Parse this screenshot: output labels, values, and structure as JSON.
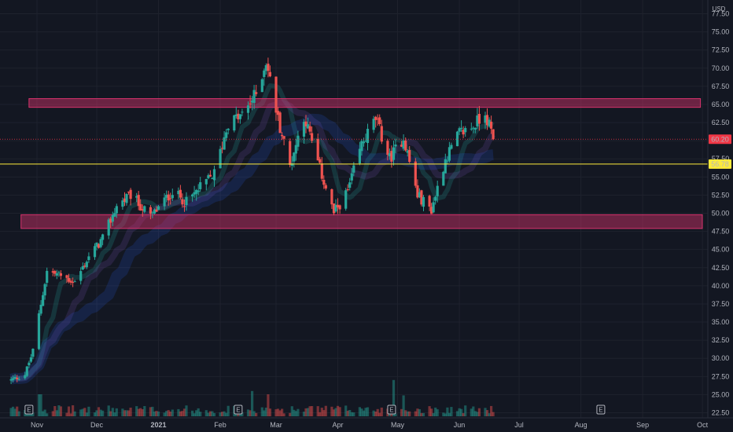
{
  "chart_data": {
    "type": "candlestick",
    "currency_label": "USD",
    "y_axis": {
      "range": [
        22.5,
        77.5
      ],
      "ticks": [
        "77.50",
        "75.00",
        "72.50",
        "70.00",
        "67.50",
        "65.00",
        "62.50",
        "60.00",
        "57.50",
        "55.00",
        "52.50",
        "50.00",
        "47.50",
        "45.00",
        "42.50",
        "40.00",
        "37.50",
        "35.00",
        "32.50",
        "30.00",
        "27.50",
        "25.00",
        "22.50"
      ]
    },
    "x_axis": {
      "labels": [
        {
          "label": "Nov",
          "date": "2020-11-01",
          "bold": false
        },
        {
          "label": "Dec",
          "date": "2020-12-01",
          "bold": false
        },
        {
          "label": "2021",
          "date": "2021-01-01",
          "bold": true
        },
        {
          "label": "Feb",
          "date": "2021-02-01",
          "bold": false
        },
        {
          "label": "Mar",
          "date": "2021-03-01",
          "bold": false
        },
        {
          "label": "Apr",
          "date": "2021-04-01",
          "bold": false
        },
        {
          "label": "May",
          "date": "2021-05-01",
          "bold": false
        },
        {
          "label": "Jun",
          "date": "2021-06-01",
          "bold": false
        },
        {
          "label": "Jul",
          "date": "2021-07-01",
          "bold": false
        },
        {
          "label": "Aug",
          "date": "2021-08-01",
          "bold": false
        },
        {
          "label": "Sep",
          "date": "2021-09-01",
          "bold": false
        },
        {
          "label": "Oct",
          "date": "2021-10-01",
          "bold": false
        }
      ]
    },
    "price_labels": [
      {
        "value": 60.2,
        "text": "60.20",
        "color": "#f23645",
        "text_color": "#ffffff"
      },
      {
        "value": 56.78,
        "text": "56.78",
        "color": "#ffeb3b",
        "text_color": "#131722"
      }
    ],
    "horizontal_lines": [
      {
        "value": 60.2,
        "color": "#f23645",
        "style": "dotted"
      },
      {
        "value": 56.78,
        "color": "#ffeb3b",
        "style": "solid"
      }
    ],
    "zones": [
      {
        "from": "2020-10-28",
        "to": "2021-09-30",
        "low": 64.6,
        "high": 65.8,
        "color": "#d6336c"
      },
      {
        "from": "2020-10-24",
        "to": "2021-10-15",
        "low": 47.9,
        "high": 49.8,
        "color": "#d6336c"
      }
    ],
    "events": [
      {
        "date": "2020-10-28",
        "label": "E"
      },
      {
        "date": "2021-02-10",
        "label": "E"
      },
      {
        "date": "2021-04-28",
        "label": "E"
      },
      {
        "date": "2021-08-11",
        "label": "E"
      }
    ],
    "ohlc_waypoints": [
      {
        "date": "2020-10-19",
        "close": 27.0
      },
      {
        "date": "2020-10-26",
        "close": 27.8
      },
      {
        "date": "2020-10-30",
        "close": 31.0
      },
      {
        "date": "2020-11-02",
        "close": 36.0
      },
      {
        "date": "2020-11-06",
        "close": 42.0
      },
      {
        "date": "2020-11-12",
        "close": 41.5
      },
      {
        "date": "2020-11-20",
        "close": 40.5
      },
      {
        "date": "2020-11-27",
        "close": 44.0
      },
      {
        "date": "2020-12-04",
        "close": 46.5
      },
      {
        "date": "2020-12-11",
        "close": 51.0
      },
      {
        "date": "2020-12-18",
        "close": 52.5
      },
      {
        "date": "2020-12-28",
        "close": 49.5
      },
      {
        "date": "2021-01-08",
        "close": 53.0
      },
      {
        "date": "2021-01-15",
        "close": 51.5
      },
      {
        "date": "2021-01-22",
        "close": 53.5
      },
      {
        "date": "2021-01-29",
        "close": 55.5
      },
      {
        "date": "2021-02-05",
        "close": 62.5
      },
      {
        "date": "2021-02-12",
        "close": 63.5
      },
      {
        "date": "2021-02-19",
        "close": 66.5
      },
      {
        "date": "2021-02-24",
        "close": 71.0
      },
      {
        "date": "2021-03-02",
        "close": 63.0
      },
      {
        "date": "2021-03-08",
        "close": 56.5
      },
      {
        "date": "2021-03-15",
        "close": 63.5
      },
      {
        "date": "2021-03-22",
        "close": 57.0
      },
      {
        "date": "2021-03-30",
        "close": 50.0
      },
      {
        "date": "2021-04-06",
        "close": 53.0
      },
      {
        "date": "2021-04-13",
        "close": 59.5
      },
      {
        "date": "2021-04-20",
        "close": 63.0
      },
      {
        "date": "2021-04-27",
        "close": 57.5
      },
      {
        "date": "2021-05-04",
        "close": 60.5
      },
      {
        "date": "2021-05-11",
        "close": 52.5
      },
      {
        "date": "2021-05-18",
        "close": 50.5
      },
      {
        "date": "2021-05-25",
        "close": 57.5
      },
      {
        "date": "2021-06-01",
        "close": 61.0
      },
      {
        "date": "2021-06-08",
        "close": 62.0
      },
      {
        "date": "2021-06-14",
        "close": 64.0
      },
      {
        "date": "2021-06-18",
        "close": 60.2
      }
    ]
  }
}
